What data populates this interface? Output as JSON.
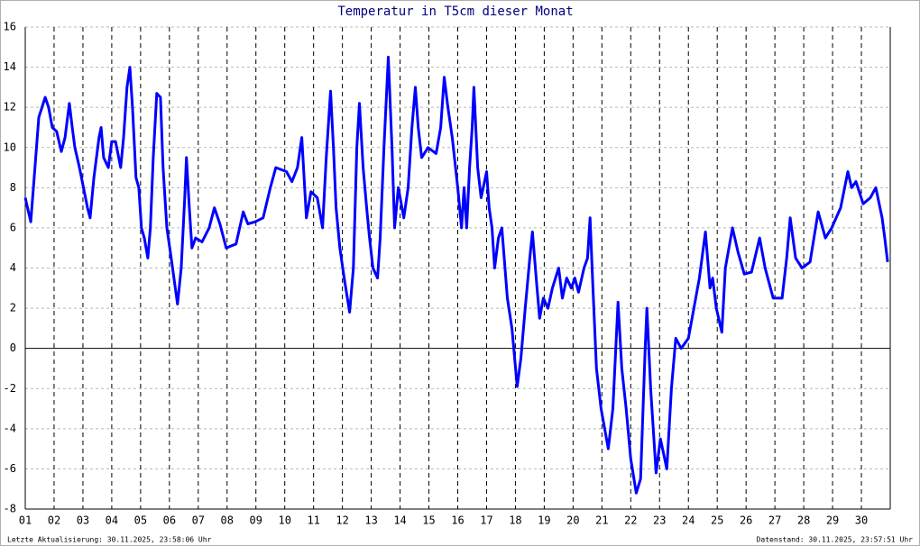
{
  "chart_data": {
    "type": "line",
    "title": "Temperatur in T5cm dieser Monat",
    "x": [
      1.0,
      1.19,
      1.31,
      1.47,
      1.69,
      1.81,
      1.94,
      2.09,
      2.25,
      2.38,
      2.53,
      2.63,
      2.72,
      2.88,
      3.16,
      3.25,
      3.38,
      3.56,
      3.63,
      3.72,
      3.88,
      4.0,
      4.13,
      4.31,
      4.41,
      4.53,
      4.63,
      4.72,
      4.84,
      4.94,
      5.03,
      5.13,
      5.25,
      5.34,
      5.44,
      5.56,
      5.69,
      5.78,
      5.91,
      6.06,
      6.28,
      6.41,
      6.53,
      6.59,
      6.69,
      6.78,
      6.91,
      7.13,
      7.38,
      7.56,
      7.75,
      7.97,
      8.31,
      8.56,
      8.72,
      8.97,
      9.25,
      9.5,
      9.69,
      10.06,
      10.25,
      10.44,
      10.59,
      10.75,
      10.91,
      11.13,
      11.31,
      11.44,
      11.59,
      11.69,
      11.78,
      11.91,
      12.06,
      12.25,
      12.38,
      12.5,
      12.59,
      12.72,
      12.84,
      12.94,
      13.06,
      13.22,
      13.31,
      13.44,
      13.59,
      13.72,
      13.81,
      13.94,
      14.13,
      14.28,
      14.41,
      14.53,
      14.63,
      14.75,
      14.97,
      15.25,
      15.41,
      15.53,
      15.66,
      15.81,
      16.0,
      16.13,
      16.22,
      16.31,
      16.41,
      16.5,
      16.56,
      16.69,
      16.81,
      17.0,
      17.09,
      17.19,
      17.28,
      17.41,
      17.53,
      17.72,
      17.88,
      18.06,
      18.19,
      18.34,
      18.5,
      18.59,
      18.75,
      18.84,
      18.97,
      19.13,
      19.28,
      19.5,
      19.63,
      19.78,
      19.94,
      20.06,
      20.19,
      20.38,
      20.5,
      20.59,
      20.69,
      20.81,
      20.97,
      21.22,
      21.38,
      21.56,
      21.69,
      21.84,
      22.0,
      22.19,
      22.34,
      22.5,
      22.56,
      22.69,
      22.88,
      23.03,
      23.25,
      23.41,
      23.56,
      23.75,
      24.0,
      24.19,
      24.38,
      24.59,
      24.75,
      24.84,
      24.97,
      25.16,
      25.28,
      25.53,
      25.72,
      25.94,
      26.19,
      26.47,
      26.66,
      26.94,
      27.25,
      27.41,
      27.53,
      27.72,
      27.94,
      28.22,
      28.5,
      28.75,
      28.97,
      29.28,
      29.53,
      29.66,
      29.81,
      30.06,
      30.31,
      30.5,
      30.72,
      30.81,
      30.91
    ],
    "series": [
      {
        "color": "#0000ff",
        "values": [
          7.5,
          6.3,
          8.5,
          11.5,
          12.5,
          12.0,
          11.0,
          10.8,
          9.8,
          10.5,
          12.2,
          11.0,
          10.0,
          9.0,
          7.0,
          6.5,
          8.5,
          10.5,
          11.0,
          9.5,
          9.0,
          10.3,
          10.3,
          9.0,
          10.5,
          13.0,
          14.0,
          12.0,
          8.5,
          8.0,
          6.0,
          5.5,
          4.5,
          6.0,
          9.5,
          12.7,
          12.5,
          9.0,
          6.0,
          4.5,
          2.2,
          4.0,
          7.5,
          9.5,
          7.0,
          5.0,
          5.5,
          5.3,
          6.0,
          7.0,
          6.2,
          5.0,
          5.2,
          6.8,
          6.2,
          6.3,
          6.5,
          8.0,
          9.0,
          8.8,
          8.3,
          9.0,
          10.5,
          6.5,
          7.8,
          7.5,
          6.0,
          9.5,
          12.8,
          10.0,
          7.0,
          5.0,
          3.5,
          1.8,
          4.0,
          10.0,
          12.2,
          9.0,
          7.0,
          5.5,
          4.0,
          3.5,
          5.5,
          10.0,
          14.5,
          10.0,
          6.0,
          8.0,
          6.5,
          8.0,
          11.0,
          13.0,
          11.0,
          9.5,
          10.0,
          9.7,
          11.0,
          13.5,
          12.0,
          10.5,
          8.0,
          6.0,
          8.0,
          6.0,
          9.0,
          11.0,
          13.0,
          9.0,
          7.5,
          8.8,
          7.0,
          6.0,
          4.0,
          5.5,
          6.0,
          2.5,
          1.0,
          -1.9,
          -0.5,
          2.0,
          4.5,
          5.8,
          3.0,
          1.5,
          2.5,
          2.0,
          3.0,
          4.0,
          2.5,
          3.5,
          3.0,
          3.5,
          2.8,
          4.0,
          4.5,
          6.5,
          3.0,
          -1.0,
          -3.0,
          -5.0,
          -3.0,
          2.3,
          -1.0,
          -3.0,
          -5.5,
          -7.2,
          -6.5,
          0.0,
          2.0,
          -2.0,
          -6.2,
          -4.5,
          -6.0,
          -2.0,
          0.5,
          0.0,
          0.5,
          2.0,
          3.5,
          5.8,
          3.0,
          3.5,
          2.0,
          0.8,
          4.0,
          6.0,
          4.8,
          3.7,
          3.8,
          5.5,
          4.0,
          2.5,
          2.5,
          4.5,
          6.5,
          4.5,
          4.0,
          4.3,
          6.8,
          5.5,
          6.0,
          7.0,
          8.8,
          8.0,
          8.3,
          7.2,
          7.5,
          8.0,
          6.5,
          5.5,
          4.3
        ]
      }
    ],
    "xlim": [
      1,
      31
    ],
    "xticks": [
      {
        "value": 1,
        "label": "01"
      },
      {
        "value": 2,
        "label": "02"
      },
      {
        "value": 3,
        "label": "03"
      },
      {
        "value": 4,
        "label": "04"
      },
      {
        "value": 5,
        "label": "05"
      },
      {
        "value": 6,
        "label": "06"
      },
      {
        "value": 7,
        "label": "07"
      },
      {
        "value": 8,
        "label": "08"
      },
      {
        "value": 9,
        "label": "09"
      },
      {
        "value": 10,
        "label": "10"
      },
      {
        "value": 11,
        "label": "11"
      },
      {
        "value": 12,
        "label": "12"
      },
      {
        "value": 13,
        "label": "13"
      },
      {
        "value": 14,
        "label": "14"
      },
      {
        "value": 15,
        "label": "15"
      },
      {
        "value": 16,
        "label": "16"
      },
      {
        "value": 17,
        "label": "17"
      },
      {
        "value": 18,
        "label": "18"
      },
      {
        "value": 19,
        "label": "19"
      },
      {
        "value": 20,
        "label": "20"
      },
      {
        "value": 21,
        "label": "21"
      },
      {
        "value": 22,
        "label": "22"
      },
      {
        "value": 23,
        "label": "23"
      },
      {
        "value": 24,
        "label": "24"
      },
      {
        "value": 25,
        "label": "25"
      },
      {
        "value": 26,
        "label": "26"
      },
      {
        "value": 27,
        "label": "27"
      },
      {
        "value": 28,
        "label": "28"
      },
      {
        "value": 29,
        "label": "29"
      },
      {
        "value": 30,
        "label": "30"
      }
    ],
    "ylim": [
      -8,
      16
    ],
    "yticks": [
      -8,
      -6,
      -4,
      -2,
      0,
      2,
      4,
      6,
      8,
      10,
      12,
      14,
      16
    ],
    "grid": true
  },
  "footer": {
    "left": "Letzte Aktualisierung: 30.11.2025, 23:58:06 Uhr",
    "right": "Datenstand: 30.11.2025, 23:57:51 Uhr"
  }
}
